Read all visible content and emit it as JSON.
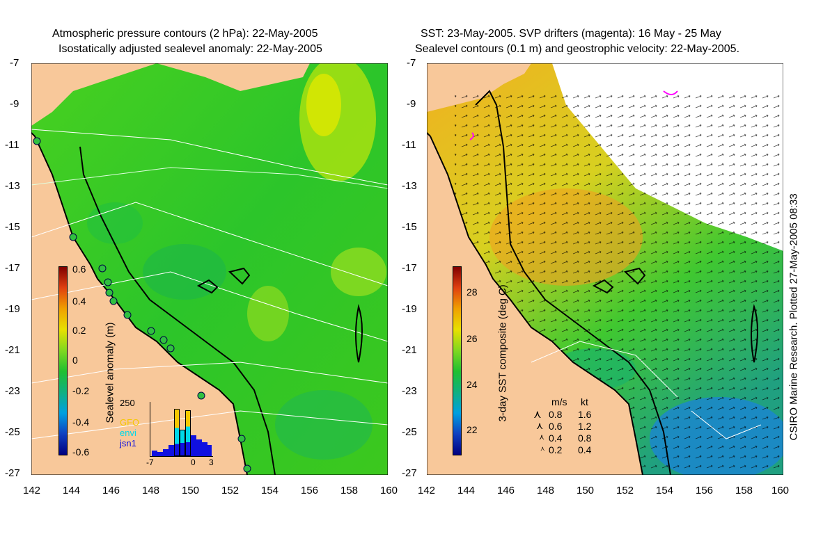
{
  "left_panel": {
    "title_line1": "Atmospheric pressure contours (2 hPa): 22-May-2005",
    "title_line2": "Isostatically adjusted sealevel anomaly: 22-May-2005",
    "y_ticks": [
      "-7",
      "-9",
      "-11",
      "-13",
      "-15",
      "-17",
      "-19",
      "-21",
      "-23",
      "-25",
      "-27"
    ],
    "x_ticks": [
      "142",
      "144",
      "146",
      "148",
      "150",
      "152",
      "154",
      "156",
      "158",
      "160"
    ],
    "colorbar_label": "Sealevel anomaly (m)",
    "colorbar_ticks": [
      "0.6",
      "0.4",
      "0.2",
      "0",
      "-0.2",
      "-0.4",
      "-0.6"
    ],
    "histogram": {
      "y_max_label": "250",
      "x_labels": [
        "-7",
        "0",
        "3"
      ],
      "legend": [
        {
          "label": "GFO",
          "color": "#f5c800"
        },
        {
          "label": "envi",
          "color": "#00d8e8"
        },
        {
          "label": "jsn1",
          "color": "#1010e0"
        }
      ]
    }
  },
  "right_panel": {
    "title_line1": "SST: 23-May-2005. SVP drifters (magenta): 16 May - 25 May",
    "title_line2": "Sealevel contours (0.1 m) and geostrophic velocity: 22-May-2005.",
    "y_ticks": [
      "-7",
      "-9",
      "-11",
      "-13",
      "-15",
      "-17",
      "-19",
      "-21",
      "-23",
      "-25",
      "-27"
    ],
    "x_ticks": [
      "142",
      "144",
      "146",
      "148",
      "150",
      "152",
      "154",
      "156",
      "158",
      "160"
    ],
    "colorbar_label": "3-day SST composite (deg C)",
    "colorbar_ticks": [
      "28",
      "26",
      "24",
      "22"
    ],
    "velocity_legend": {
      "headers": [
        "m/s",
        "kt"
      ],
      "rows": [
        [
          "0.8",
          "1.6"
        ],
        [
          "0.6",
          "1.2"
        ],
        [
          "0.4",
          "0.8"
        ],
        [
          "0.2",
          "0.4"
        ]
      ]
    }
  },
  "credit": "CSIRO Marine Research. Plotted 27-May-2005 08:33",
  "colors": {
    "land": "#f8c89a",
    "ocean_green": "#3ecb1e",
    "coast": "#000000"
  }
}
